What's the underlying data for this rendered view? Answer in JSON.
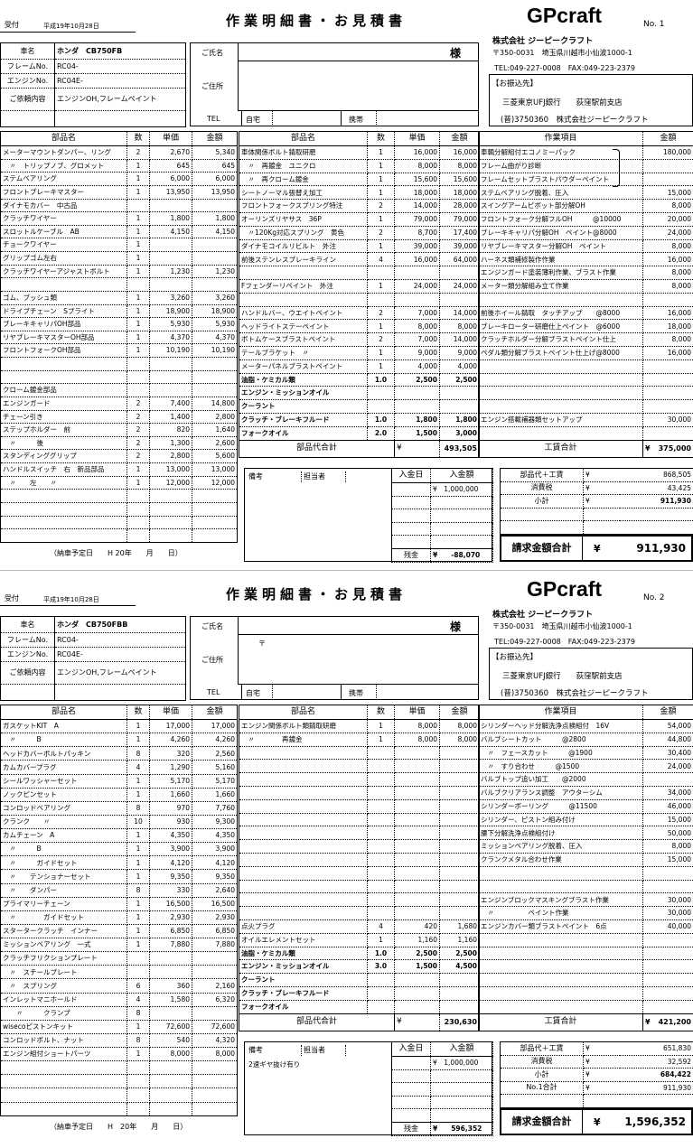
{
  "sheets": [
    {
      "reception_label": "受付",
      "date": "平成19年10月28日",
      "title": "作業明細書・お見積書",
      "brand": "GPcraft",
      "number": "No. 1",
      "company": {
        "name": "株式会社 ジーピークラフト",
        "address": "〒350-0031　埼玉県川越市小仙波1000-1",
        "tel": "TEL:049-227-0008　FAX:049-223-2379",
        "bank_label": "【お振込先】",
        "bank": "三菱東京UFJ銀行　　荻窪駅前支店",
        "account": "(普)3750360　株式会社ジーピークラフト"
      },
      "vehicle": [
        [
          "車名",
          "ホンダ　CB750FB"
        ],
        [
          "フレームNo.",
          "RC04-"
        ],
        [
          "エンジンNo.",
          "RC04E-"
        ],
        [
          "ご依頼内容",
          "エンジンOH,フレームペイント"
        ],
        [
          "",
          ""
        ]
      ],
      "customer": {
        "name_label": "ご氏名",
        "honorific": "様",
        "address_label": "ご住所",
        "postal": "",
        "tel_label": "TEL",
        "home": "自宅",
        "mobile": "携帯"
      },
      "parts_headers": [
        "部品名",
        "数",
        "単価",
        "金額"
      ],
      "parts_left": [
        [
          "メーターマウントダンパー、リング",
          "2",
          "2,670",
          "5,340"
        ],
        [
          "　〃　トリップノブ、グロメット",
          "1",
          "645",
          "645"
        ],
        [
          "ステムベアリング",
          "1",
          "6,000",
          "6,000"
        ],
        [
          "フロントブレーキマスター",
          "1",
          "13,950",
          "13,950"
        ],
        [
          "ダイナモカバー　中古品",
          "",
          "",
          ""
        ],
        [
          "クラッチワイヤー",
          "1",
          "1,800",
          "1,800"
        ],
        [
          "スロットルケーブル　AB",
          "1",
          "4,150",
          "4,150"
        ],
        [
          "チョークワイヤー",
          "1",
          "",
          ""
        ],
        [
          "グリップゴム左右",
          "1",
          "",
          ""
        ],
        [
          "クラッチワイヤーアジャストボルト",
          "1",
          "1,230",
          "1,230"
        ],
        [
          "",
          "",
          "",
          ""
        ],
        [
          "ゴム、ブッシュ類",
          "1",
          "3,260",
          "3,260"
        ],
        [
          "ドライブチェーン　Sプライト",
          "1",
          "18,900",
          "18,900"
        ],
        [
          "ブレーキキャリパOH部品",
          "1",
          "5,930",
          "5,930"
        ],
        [
          "リヤブレーキマスターOH部品",
          "1",
          "4,370",
          "4,370"
        ],
        [
          "フロントフォークOH部品",
          "1",
          "10,190",
          "10,190"
        ],
        [
          "",
          "",
          "",
          ""
        ],
        [
          "",
          "",
          "",
          ""
        ],
        [
          "クローム鍍金部品",
          "",
          "",
          ""
        ],
        [
          "エンジンガード",
          "2",
          "7,400",
          "14,800"
        ],
        [
          "チェーン引き",
          "2",
          "1,400",
          "2,800"
        ],
        [
          "ステップホルダー　前",
          "2",
          "820",
          "1,640"
        ],
        [
          "　〃　　　後",
          "2",
          "1,300",
          "2,600"
        ],
        [
          "スタンディンググリップ",
          "2",
          "2,800",
          "5,600"
        ],
        [
          "ハンドルスイッチ　右　新品部品",
          "1",
          "13,000",
          "13,000"
        ],
        [
          "　〃　　左　　〃",
          "1",
          "12,000",
          "12,000"
        ],
        [
          "",
          "",
          "",
          ""
        ],
        [
          "",
          "",
          "",
          ""
        ],
        [
          "",
          "",
          "",
          ""
        ],
        [
          "",
          "",
          "",
          ""
        ]
      ],
      "parts_mid": [
        [
          "車体関係ボルト錆取研磨",
          "1",
          "16,000",
          "16,000"
        ],
        [
          "　〃　再鍍金　ユニクロ",
          "1",
          "8,000",
          "8,000"
        ],
        [
          "　〃　再クローム鍍金",
          "1",
          "15,600",
          "15,600"
        ],
        [
          "シートノーマル張替え加工",
          "1",
          "18,000",
          "18,000"
        ],
        [
          "フロントフォークスプリング特注",
          "2",
          "14,000",
          "28,000"
        ],
        [
          "オーリンズリヤサス　36P",
          "1",
          "79,000",
          "79,000"
        ],
        [
          "　〃120Kg対応スプリング　黄色",
          "2",
          "8,700",
          "17,400"
        ],
        [
          "ダイナモコイルリビルト　外注",
          "1",
          "39,000",
          "39,000"
        ],
        [
          "前後ステンレスブレーキライン",
          "4",
          "16,000",
          "64,000"
        ],
        [
          "",
          "",
          "",
          ""
        ],
        [
          "Fフェンダーリペイント　外注",
          "1",
          "24,000",
          "24,000"
        ],
        [
          "",
          "",
          "",
          ""
        ],
        [
          "ハンドルバー、ウエイトペイント",
          "2",
          "7,000",
          "14,000"
        ],
        [
          "ヘッドライトステーペイント",
          "1",
          "8,000",
          "8,000"
        ],
        [
          "ボトムケースブラストペイント",
          "2",
          "7,000",
          "14,000"
        ],
        [
          "テールブラケット　〃",
          "1",
          "9,000",
          "9,000"
        ],
        [
          "メーターパネルブラストペイント",
          "1",
          "4,000",
          "4,000"
        ],
        [
          "油脂・ケミカル類",
          "1.0",
          "2,500",
          "2,500"
        ],
        [
          "エンジン・ミッションオイル",
          "",
          "",
          ""
        ],
        [
          "クーラント",
          "",
          "",
          ""
        ],
        [
          "クラッチ・ブレーキフルード",
          "1.0",
          "1,800",
          "1,800"
        ],
        [
          "フォークオイル",
          "2.0",
          "1,500",
          "3,000"
        ]
      ],
      "parts_total": {
        "label": "部品代合計",
        "yen": "¥",
        "value": "493,505"
      },
      "work_headers": [
        "作業項目",
        "金額"
      ],
      "work": [
        [
          "車輌分解組付エコノミーパック",
          "180,000"
        ],
        [
          "フレーム曲がり診断",
          ""
        ],
        [
          "フレームセットブラストパウダーペイント",
          ""
        ],
        [
          "ステムベアリング脱着、圧入",
          "15,000"
        ],
        [
          "スイングアームピボット部分解OH",
          "8,000"
        ],
        [
          "フロントフォーク分解フルOH　　　@10000",
          "20,000"
        ],
        [
          "ブレーキキャリパ分解OH　ペイント@8000",
          "24,000"
        ],
        [
          "リヤブレーキマスター分解OH　ペイント",
          "8,000"
        ],
        [
          "ハーネス類補修製作作業",
          "16,000"
        ],
        [
          "エンジンガード塗装薄利作業、ブラスト作業",
          "8,000"
        ],
        [
          "メーター類分解組み立て作業",
          "8,000"
        ],
        [
          "",
          ""
        ],
        [
          "前後ホイール錆取　タッチアップ　　@8000",
          "16,000"
        ],
        [
          "ブレーキローター研磨仕上ペイント　@6000",
          "18,000"
        ],
        [
          "クラッチホルダー分解ブラストペイント仕上",
          "8,000"
        ],
        [
          "ペダル類分解ブラストペイント仕上げ@8000",
          "16,000"
        ],
        [
          "",
          ""
        ],
        [
          "",
          ""
        ],
        [
          "",
          ""
        ],
        [
          "",
          ""
        ],
        [
          "エンジン搭載補器類セットアップ",
          "30,000"
        ],
        [
          "",
          ""
        ]
      ],
      "work_total": {
        "label": "工賃合計",
        "yen": "¥",
        "value": "375,000"
      },
      "remarks": {
        "label": "備考",
        "staff_label": "担当者",
        "note": "",
        "pay_date_label": "入金日",
        "pay_amount_label": "入金額",
        "payments": [
          [
            "",
            "¥　1,000,000"
          ],
          [
            "",
            ""
          ],
          [
            "",
            ""
          ],
          [
            "",
            ""
          ],
          [
            "",
            ""
          ]
        ],
        "balance_label": "残金",
        "balance": "¥　　-88,070"
      },
      "summary": [
        [
          "部品代＋工賃",
          "¥",
          "868,505"
        ],
        [
          "消費税",
          "¥",
          "43,425"
        ],
        [
          "小計",
          "¥",
          "911,930"
        ],
        [
          "",
          "",
          ""
        ],
        [
          "",
          "",
          ""
        ]
      ],
      "grand": {
        "label": "請求金額合計",
        "yen": "¥",
        "value": "911,930"
      },
      "delivery": "（納車予定日　　H 20年　　月　　日）"
    },
    {
      "reception_label": "受付",
      "date": "平成19年10月28日",
      "title": "作業明細書・お見積書",
      "brand": "GPcraft",
      "number": "No. 2",
      "company": {
        "name": "株式会社 ジーピークラフト",
        "address": "〒350-0031　埼玉県川越市小仙波1000-1",
        "tel": "TEL:049-227-0008　FAX:049-223-2379",
        "bank_label": "【お振込先】",
        "bank": "三菱東京UFJ銀行　　荻窪駅前支店",
        "account": "(普)3750360　株式会社ジーピークラフト"
      },
      "vehicle": [
        [
          "車名",
          "ホンダ　CB750FBB"
        ],
        [
          "フレームNo.",
          "RC04-"
        ],
        [
          "エンジンNo.",
          "RC04E-"
        ],
        [
          "ご依頼内容",
          "エンジンOH,フレームペイント"
        ],
        [
          "",
          ""
        ]
      ],
      "customer": {
        "name_label": "ご氏名",
        "honorific": "様",
        "address_label": "ご住所",
        "postal": "〒",
        "tel_label": "TEL",
        "home": "自宅",
        "mobile": "携帯"
      },
      "parts_headers": [
        "部品名",
        "数",
        "単価",
        "金額"
      ],
      "parts_left": [
        [
          "ガスケットKIT　A",
          "1",
          "17,000",
          "17,000"
        ],
        [
          "　〃　　　B",
          "1",
          "4,260",
          "4,260"
        ],
        [
          "ヘッドカバーボルトパッキン",
          "8",
          "320",
          "2,560"
        ],
        [
          "カムカバープラグ",
          "4",
          "1,290",
          "5,160"
        ],
        [
          "シールワッシャーセット",
          "1",
          "5,170",
          "5,170"
        ],
        [
          "ノックピンセット",
          "1",
          "1,660",
          "1,660"
        ],
        [
          "コンロッドベアリング",
          "8",
          "970",
          "7,760"
        ],
        [
          "クランク　　〃",
          "10",
          "930",
          "9,300"
        ],
        [
          "カムチェーン　A",
          "1",
          "4,350",
          "4,350"
        ],
        [
          "　〃　　　B",
          "1",
          "3,900",
          "3,900"
        ],
        [
          "　〃　　　ガイドセット",
          "1",
          "4,120",
          "4,120"
        ],
        [
          "　〃　　テンショナーセット",
          "1",
          "9,350",
          "9,350"
        ],
        [
          "　〃　　ダンパー",
          "8",
          "330",
          "2,640"
        ],
        [
          "プライマリーチェーン",
          "1",
          "16,500",
          "16,500"
        ],
        [
          "　〃　　　　ガイドセット",
          "1",
          "2,930",
          "2,930"
        ],
        [
          "スタータークラッチ　インナー",
          "1",
          "6,850",
          "6,850"
        ],
        [
          "ミッションベアリング　一式",
          "1",
          "7,880",
          "7,880"
        ],
        [
          "クラッチフリクションプレート",
          "",
          "",
          ""
        ],
        [
          "　〃　スチールプレート",
          "",
          "",
          ""
        ],
        [
          "　〃　スプリング",
          "6",
          "360",
          "2,160"
        ],
        [
          "インレットマニホールド",
          "4",
          "1,580",
          "6,320"
        ],
        [
          "　　〃　　　クランプ",
          "8",
          "",
          ""
        ],
        [
          "wisecoピストンキット",
          "1",
          "72,600",
          "72,600"
        ],
        [
          "コンロッドボルト、ナット",
          "8",
          "540",
          "4,320"
        ],
        [
          "エンジン組付ショートパーツ",
          "1",
          "8,000",
          "8,000"
        ],
        [
          "",
          "",
          "",
          ""
        ],
        [
          "",
          "",
          "",
          ""
        ],
        [
          "",
          "",
          "",
          ""
        ],
        [
          "",
          "",
          "",
          ""
        ]
      ],
      "parts_mid": [
        [
          "エンジン関係ボルト類錆取研磨",
          "1",
          "8,000",
          "8,000"
        ],
        [
          "　〃　　　　再鍍金",
          "1",
          "8,000",
          "8,000"
        ],
        [
          "",
          "",
          "",
          ""
        ],
        [
          "",
          "",
          "",
          ""
        ],
        [
          "",
          "",
          "",
          ""
        ],
        [
          "",
          "",
          "",
          ""
        ],
        [
          "",
          "",
          "",
          ""
        ],
        [
          "",
          "",
          "",
          ""
        ],
        [
          "",
          "",
          "",
          ""
        ],
        [
          "",
          "",
          "",
          ""
        ],
        [
          "",
          "",
          "",
          ""
        ],
        [
          "",
          "",
          "",
          ""
        ],
        [
          "",
          "",
          "",
          ""
        ],
        [
          "",
          "",
          "",
          ""
        ],
        [
          "",
          "",
          "",
          ""
        ],
        [
          "点火プラグ",
          "4",
          "420",
          "1,680"
        ],
        [
          "オイルエレメントセット",
          "1",
          "1,160",
          "1,160"
        ],
        [
          "油脂・ケミカル類",
          "1.0",
          "2,500",
          "2,500"
        ],
        [
          "エンジン・ミッションオイル",
          "3.0",
          "1,500",
          "4,500"
        ],
        [
          "クーラント",
          "",
          "",
          ""
        ],
        [
          "クラッチ・ブレーキフルード",
          "",
          "",
          ""
        ],
        [
          "フォークオイル",
          "",
          "",
          ""
        ]
      ],
      "parts_total": {
        "label": "部品代合計",
        "yen": "¥",
        "value": "230,630"
      },
      "work_headers": [
        "作業項目",
        "金額"
      ],
      "work": [
        [
          "シリンダーヘッド分解洗浄点検組付　16V",
          "54,000"
        ],
        [
          "バルブシートカット　　　@2800",
          "44,800"
        ],
        [
          "　〃　フェースカット　　　@1900",
          "30,400"
        ],
        [
          "　〃　すり合わせ　　　@1500",
          "24,000"
        ],
        [
          "バルブトップ追い加工　　@2000",
          ""
        ],
        [
          "バルブクリアランス調整　アウターシム",
          "34,000"
        ],
        [
          "シリンダーボーリング　　　@11500",
          "46,000"
        ],
        [
          "シリンダー、ピストン組み付け",
          "15,000"
        ],
        [
          "腰下分解洗浄点検組付け",
          "50,000"
        ],
        [
          "ミッションベアリング脱着、圧入",
          "8,000"
        ],
        [
          "クランクメタル合わせ作業",
          "15,000"
        ],
        [
          "",
          ""
        ],
        [
          "",
          ""
        ],
        [
          "エンジンブロックマスキングブラスト作業",
          "30,000"
        ],
        [
          "　〃　　　　　ペイント作業",
          "30,000"
        ],
        [
          "エンジンカバー類ブラストペイント　6点",
          "40,000"
        ],
        [
          "",
          ""
        ],
        [
          "",
          ""
        ],
        [
          "",
          ""
        ],
        [
          "",
          ""
        ],
        [
          "",
          ""
        ],
        [
          "",
          ""
        ]
      ],
      "work_total": {
        "label": "工賃合計",
        "yen": "¥",
        "value": "421,200"
      },
      "remarks": {
        "label": "備考",
        "staff_label": "担当者",
        "note": "2速ギヤ抜け有り",
        "pay_date_label": "入金日",
        "pay_amount_label": "入金額",
        "payments": [
          [
            "",
            "¥　1,000,000"
          ],
          [
            "",
            ""
          ],
          [
            "",
            ""
          ],
          [
            "",
            ""
          ],
          [
            "",
            ""
          ]
        ],
        "balance_label": "残金",
        "balance": "¥　　596,352"
      },
      "summary": [
        [
          "部品代＋工賃",
          "¥",
          "651,830"
        ],
        [
          "消費税",
          "¥",
          "32,592"
        ],
        [
          "小計",
          "¥",
          "684,422"
        ],
        [
          "No.1合計",
          "¥",
          "911,930"
        ],
        [
          "",
          "",
          ""
        ]
      ],
      "grand": {
        "label": "請求金額合計",
        "yen": "¥",
        "value": "1,596,352"
      },
      "delivery": "（納車予定日　　H　20年　　月　　日）"
    }
  ]
}
